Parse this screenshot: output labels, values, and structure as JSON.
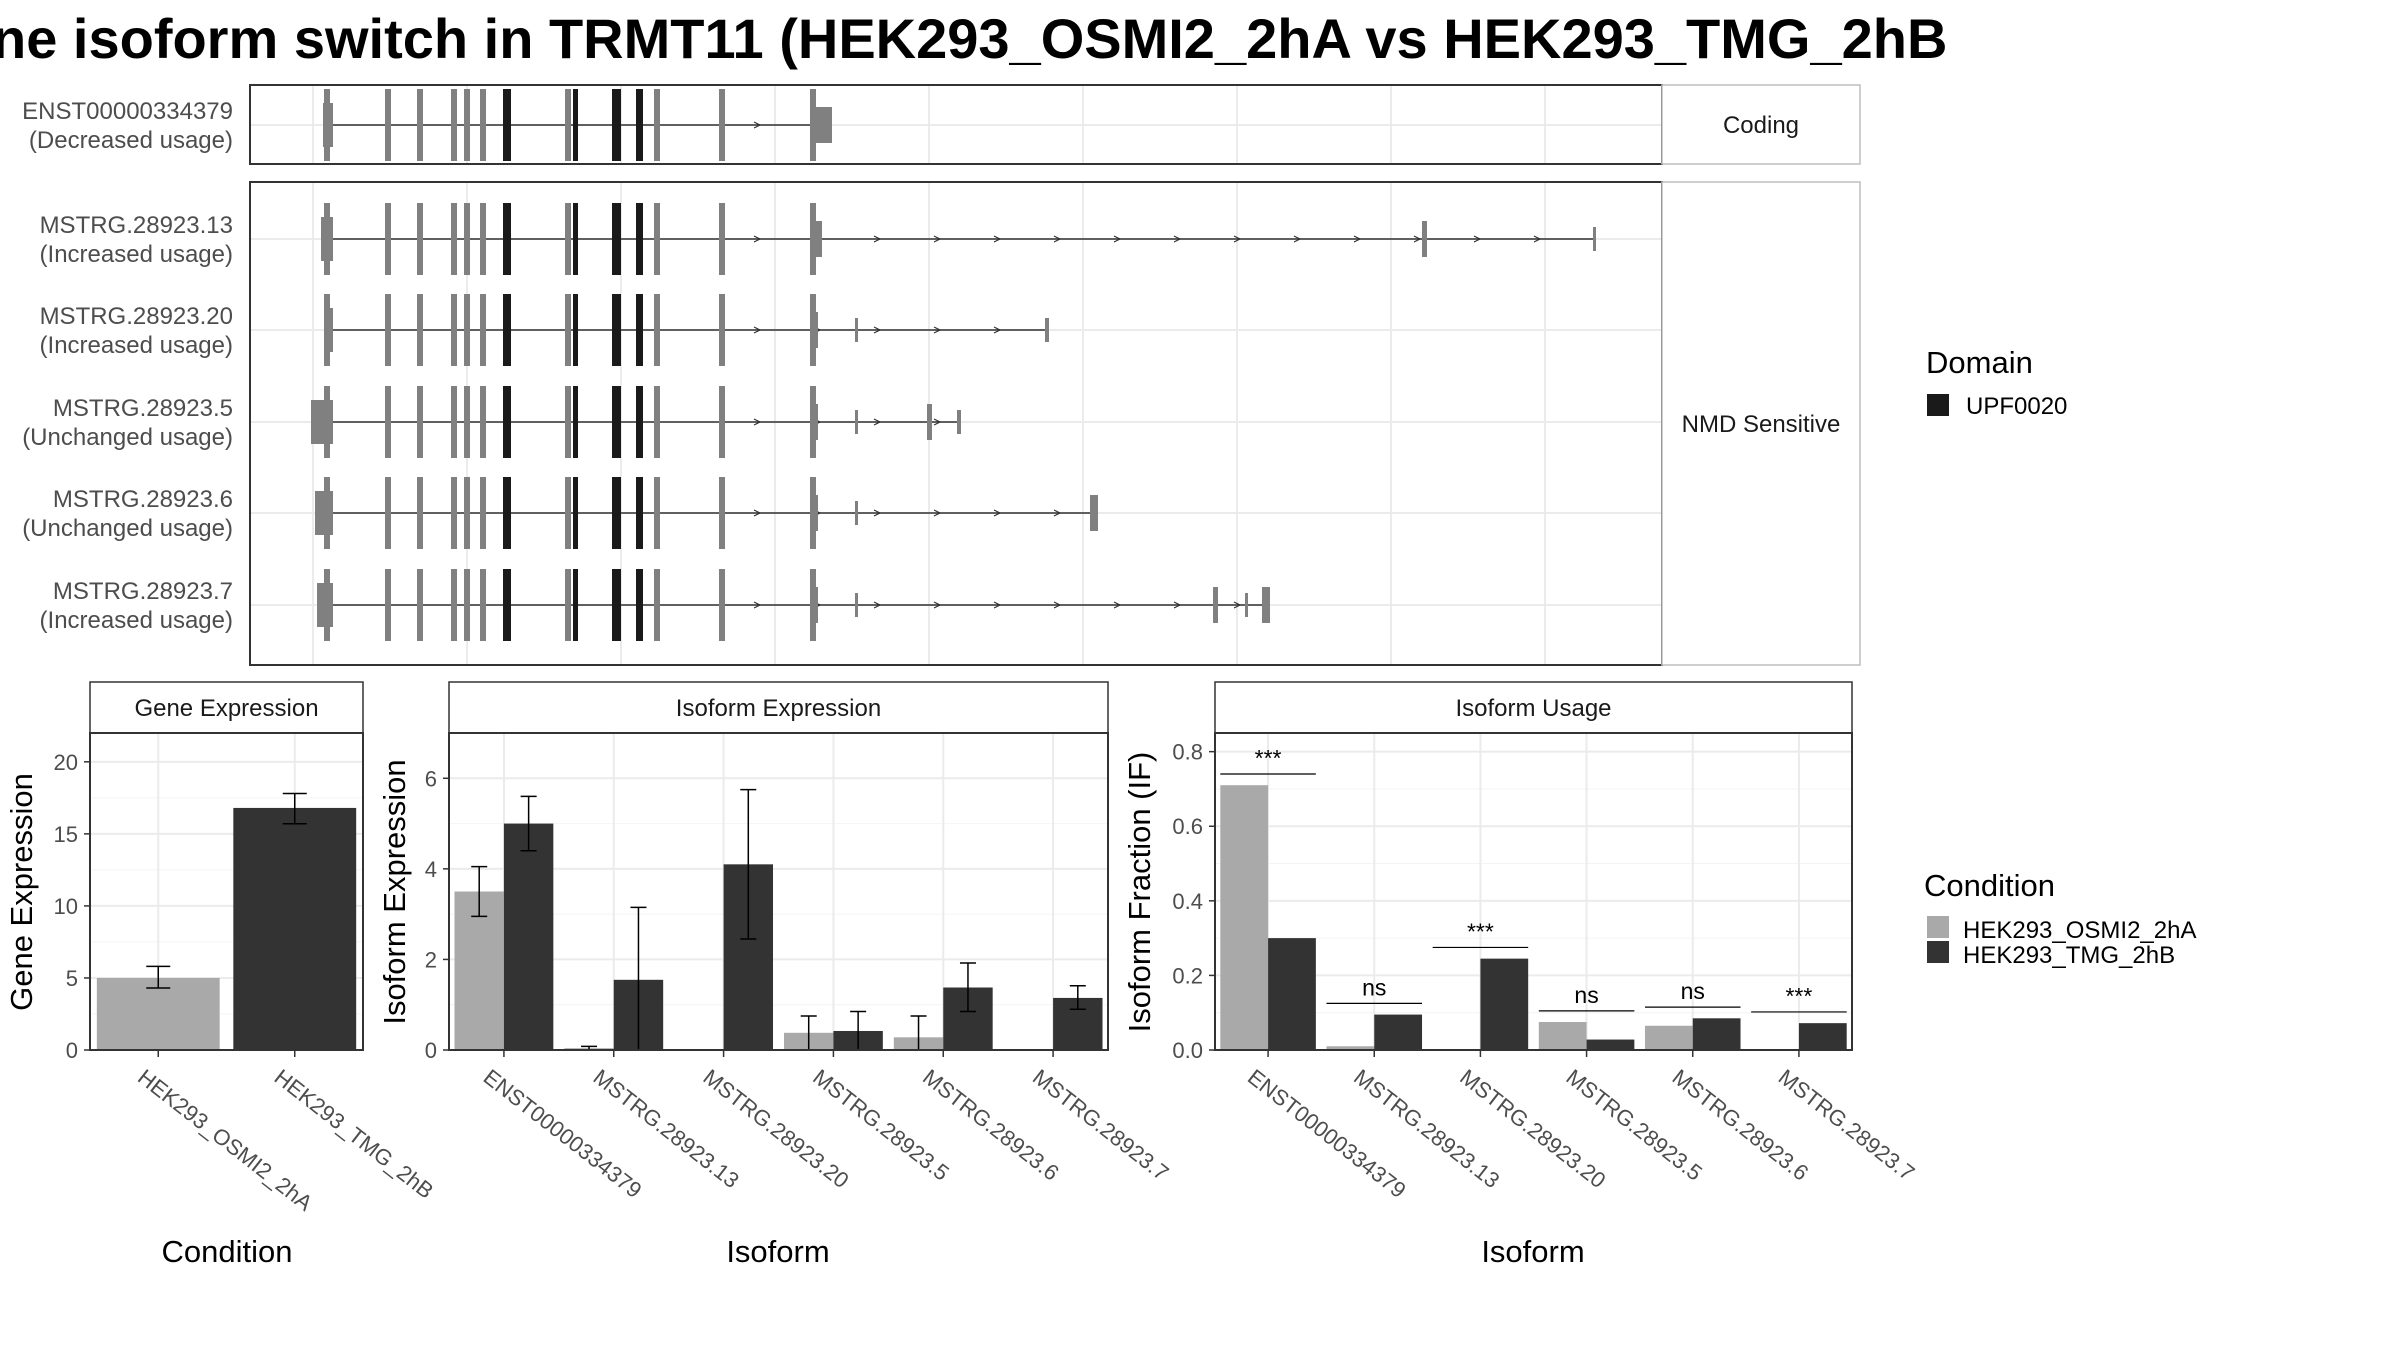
{
  "title": "ne isoform switch in TRMT11 (HEK293_OSMI2_2hA vs HEK293_TMG_2hB",
  "colors": {
    "cond1": "#a9a9a9",
    "cond2": "#333333",
    "exon": "#808080",
    "domain": "#1a1a1a",
    "panel_border": "#333333",
    "strip_bg": "#ffffff",
    "grid": "#ebebeb"
  },
  "transcripts": {
    "strip_top": "Coding",
    "strip_bottom": "NMD Sensitive",
    "rows": [
      {
        "name": "ENST00000334379",
        "status": "(Decreased usage)"
      },
      {
        "name": "MSTRG.28923.13",
        "status": "(Increased usage)"
      },
      {
        "name": "MSTRG.28923.20",
        "status": "(Increased usage)"
      },
      {
        "name": "MSTRG.28923.5",
        "status": "(Unchanged usage)"
      },
      {
        "name": "MSTRG.28923.6",
        "status": "(Unchanged usage)"
      },
      {
        "name": "MSTRG.28923.7",
        "status": "(Increased usage)"
      }
    ]
  },
  "legend": {
    "domain_title": "Domain",
    "domain_item": "UPF0020",
    "condition_title": "Condition",
    "condition_items": [
      "HEK293_OSMI2_2hA",
      "HEK293_TMG_2hB"
    ]
  },
  "chart_data": [
    {
      "type": "bar",
      "title": "Gene Expression",
      "xlabel": "Condition",
      "ylabel": "Gene Expression",
      "ylim": [
        0,
        22
      ],
      "yticks": [
        "0",
        "5",
        "10",
        "15",
        "20"
      ],
      "categories": [
        "HEK293_OSMI2_2hA",
        "HEK293_TMG_2hB"
      ],
      "values": [
        5.0,
        16.8
      ],
      "error": [
        [
          4.3,
          5.8
        ],
        [
          15.7,
          17.8
        ]
      ]
    },
    {
      "type": "bar",
      "title": "Isoform Expression",
      "xlabel": "Isoform",
      "ylabel": "Isoform Expression",
      "ylim": [
        0,
        7
      ],
      "yticks": [
        "0",
        "2",
        "4",
        "6"
      ],
      "categories": [
        "ENST00000334379",
        "MSTRG.28923.13",
        "MSTRG.28923.20",
        "MSTRG.28923.5",
        "MSTRG.28923.6",
        "MSTRG.28923.7"
      ],
      "series": [
        {
          "name": "HEK293_OSMI2_2hA",
          "values": [
            3.5,
            0.04,
            0.0,
            0.38,
            0.28,
            0.0
          ],
          "error": [
            [
              2.95,
              4.05
            ],
            [
              0.0,
              0.08
            ],
            [
              0.0,
              0.0
            ],
            [
              0.0,
              0.75
            ],
            [
              0.0,
              0.75
            ],
            [
              0.0,
              0.0
            ]
          ]
        },
        {
          "name": "HEK293_TMG_2hB",
          "values": [
            5.0,
            1.55,
            4.1,
            0.42,
            1.38,
            1.15
          ],
          "error": [
            [
              4.4,
              5.6
            ],
            [
              0.0,
              3.15
            ],
            [
              2.45,
              5.75
            ],
            [
              0.0,
              0.85
            ],
            [
              0.85,
              1.92
            ],
            [
              0.9,
              1.42
            ]
          ]
        }
      ]
    },
    {
      "type": "bar",
      "title": "Isoform Usage",
      "xlabel": "Isoform",
      "ylabel": "Isoform Fraction (IF)",
      "ylim": [
        0,
        0.85
      ],
      "yticks": [
        "0.0",
        "0.2",
        "0.4",
        "0.6",
        "0.8"
      ],
      "categories": [
        "ENST00000334379",
        "MSTRG.28923.13",
        "MSTRG.28923.20",
        "MSTRG.28923.5",
        "MSTRG.28923.6",
        "MSTRG.28923.7"
      ],
      "series": [
        {
          "name": "HEK293_OSMI2_2hA",
          "values": [
            0.71,
            0.01,
            0.0,
            0.075,
            0.065,
            0.0
          ]
        },
        {
          "name": "HEK293_TMG_2hB",
          "values": [
            0.3,
            0.095,
            0.245,
            0.028,
            0.085,
            0.072
          ]
        }
      ],
      "significance": [
        "***",
        "ns",
        "***",
        "ns",
        "ns",
        "***"
      ]
    }
  ]
}
